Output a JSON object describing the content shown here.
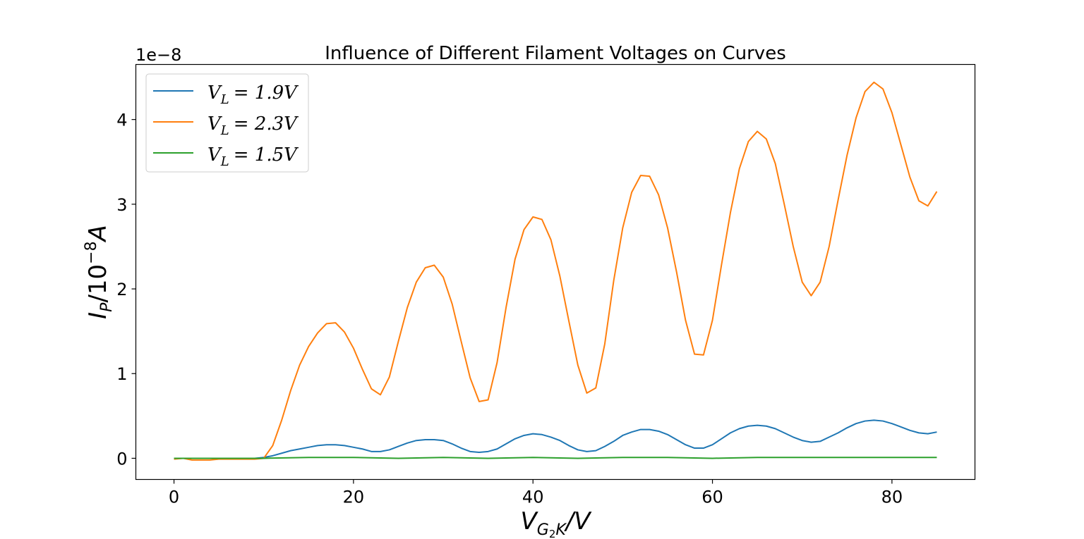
{
  "chart_data": {
    "type": "line",
    "title": "Influence of Different Filament Voltages on Curves",
    "offset_text": "1e−8",
    "xlabel": {
      "base": "V",
      "sub": "G",
      "subsub": "2",
      "sub2": "K",
      "tail": "/V"
    },
    "ylabel": {
      "base": "I",
      "sub": "P",
      "tail": "/10",
      "sup": "−8",
      "unit": "A"
    },
    "xlim": [
      -4.25,
      89.25
    ],
    "ylim": [
      -0.25,
      4.65
    ],
    "xticks": [
      0,
      20,
      40,
      60,
      80
    ],
    "yticks": [
      0,
      1,
      2,
      3,
      4
    ],
    "grid": false,
    "legend_position": "upper-left",
    "series": [
      {
        "name": "V_L = 1.9V",
        "label": {
          "base": "V",
          "sub": "L",
          "rest": "= 1.9V"
        },
        "color": "#1f77b4",
        "x": [
          0,
          1,
          2,
          3,
          4,
          5,
          6,
          7,
          8,
          9,
          10,
          11,
          12,
          13,
          14,
          15,
          16,
          17,
          18,
          19,
          20,
          21,
          22,
          23,
          24,
          25,
          26,
          27,
          28,
          29,
          30,
          31,
          32,
          33,
          34,
          35,
          36,
          37,
          38,
          39,
          40,
          41,
          42,
          43,
          44,
          45,
          46,
          47,
          48,
          49,
          50,
          51,
          52,
          53,
          54,
          55,
          56,
          57,
          58,
          59,
          60,
          61,
          62,
          63,
          64,
          65,
          66,
          67,
          68,
          69,
          70,
          71,
          72,
          73,
          74,
          75,
          76,
          77,
          78,
          79,
          80,
          81,
          82,
          83,
          84,
          85
        ],
        "y": [
          0,
          0,
          0,
          0,
          0,
          0,
          0,
          0,
          0,
          0,
          0.01,
          0.03,
          0.06,
          0.09,
          0.11,
          0.13,
          0.15,
          0.16,
          0.16,
          0.15,
          0.13,
          0.11,
          0.08,
          0.08,
          0.1,
          0.14,
          0.18,
          0.21,
          0.22,
          0.22,
          0.21,
          0.17,
          0.12,
          0.08,
          0.07,
          0.08,
          0.11,
          0.17,
          0.23,
          0.27,
          0.29,
          0.28,
          0.25,
          0.21,
          0.15,
          0.1,
          0.08,
          0.09,
          0.14,
          0.2,
          0.27,
          0.31,
          0.34,
          0.34,
          0.32,
          0.28,
          0.22,
          0.16,
          0.12,
          0.12,
          0.16,
          0.23,
          0.3,
          0.35,
          0.38,
          0.39,
          0.38,
          0.35,
          0.3,
          0.25,
          0.21,
          0.19,
          0.2,
          0.25,
          0.3,
          0.36,
          0.41,
          0.44,
          0.45,
          0.44,
          0.41,
          0.37,
          0.33,
          0.3,
          0.29,
          0.31
        ]
      },
      {
        "name": "V_L = 2.3V",
        "label": {
          "base": "V",
          "sub": "L",
          "rest": "= 2.3V"
        },
        "color": "#ff7f0e",
        "x": [
          0,
          1,
          2,
          3,
          4,
          5,
          6,
          7,
          8,
          9,
          10,
          11,
          12,
          13,
          14,
          15,
          16,
          17,
          18,
          19,
          20,
          21,
          22,
          23,
          24,
          25,
          26,
          27,
          28,
          29,
          30,
          31,
          32,
          33,
          34,
          35,
          36,
          37,
          38,
          39,
          40,
          41,
          42,
          43,
          44,
          45,
          46,
          47,
          48,
          49,
          50,
          51,
          52,
          53,
          54,
          55,
          56,
          57,
          58,
          59,
          60,
          61,
          62,
          63,
          64,
          65,
          66,
          67,
          68,
          69,
          70,
          71,
          72,
          73,
          74,
          75,
          76,
          77,
          78,
          79,
          80,
          81,
          82,
          83,
          84,
          85
        ],
        "y": [
          -0.01,
          0,
          -0.02,
          -0.02,
          -0.02,
          -0.01,
          -0.01,
          -0.01,
          -0.01,
          -0.01,
          0,
          0.15,
          0.45,
          0.8,
          1.1,
          1.32,
          1.48,
          1.59,
          1.6,
          1.49,
          1.3,
          1.05,
          0.82,
          0.75,
          0.96,
          1.38,
          1.78,
          2.08,
          2.25,
          2.28,
          2.14,
          1.82,
          1.38,
          0.95,
          0.67,
          0.69,
          1.13,
          1.78,
          2.35,
          2.7,
          2.85,
          2.82,
          2.58,
          2.15,
          1.62,
          1.1,
          0.77,
          0.83,
          1.35,
          2.1,
          2.72,
          3.14,
          3.34,
          3.33,
          3.11,
          2.72,
          2.2,
          1.63,
          1.23,
          1.22,
          1.63,
          2.28,
          2.9,
          3.42,
          3.74,
          3.86,
          3.77,
          3.48,
          3,
          2.5,
          2.08,
          1.92,
          2.08,
          2.5,
          3.05,
          3.58,
          4.02,
          4.33,
          4.44,
          4.36,
          4.08,
          3.7,
          3.32,
          3.04,
          2.98,
          3.15
        ]
      },
      {
        "name": "V_L = 1.5V",
        "label": {
          "base": "V",
          "sub": "L",
          "rest": "= 1.5V"
        },
        "color": "#2ca02c",
        "x": [
          0,
          5,
          10,
          15,
          20,
          25,
          30,
          35,
          40,
          45,
          50,
          55,
          60,
          65,
          70,
          75,
          80,
          85
        ],
        "y": [
          0,
          0,
          0,
          0.01,
          0.01,
          0,
          0.01,
          0,
          0.01,
          0,
          0.01,
          0.01,
          0,
          0.01,
          0.01,
          0.01,
          0.01,
          0.01
        ]
      }
    ]
  }
}
